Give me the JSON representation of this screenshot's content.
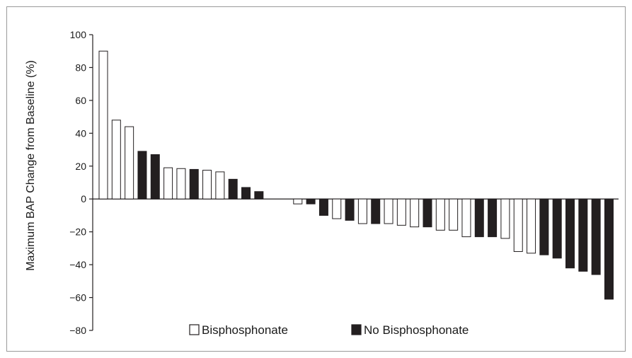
{
  "chart_data": {
    "type": "bar",
    "title": "",
    "xlabel": "",
    "ylabel": "Maximum BAP Change from Baseline (%)",
    "ylim": [
      -80,
      100
    ],
    "yticks": [
      100,
      80,
      60,
      40,
      20,
      0,
      -20,
      -40,
      -60,
      -80
    ],
    "ytick_labels": [
      "100",
      "80",
      "60",
      "40",
      "20",
      "0",
      "−20",
      "−40",
      "−60",
      "−80"
    ],
    "grid": false,
    "legend": {
      "placement": "bottom-center",
      "entries": [
        {
          "label": "Bisphosphonate",
          "style": "open"
        },
        {
          "label": "No Bisphosphonate",
          "style": "filled"
        }
      ]
    },
    "colors": {
      "filled": "#231f20",
      "open": "#ffffff",
      "outline": "#231f20"
    },
    "bars": [
      {
        "value": 90,
        "group": "Bisphosphonate"
      },
      {
        "value": 48,
        "group": "Bisphosphonate"
      },
      {
        "value": 44,
        "group": "Bisphosphonate"
      },
      {
        "value": 29,
        "group": "No Bisphosphonate"
      },
      {
        "value": 27,
        "group": "No Bisphosphonate"
      },
      {
        "value": 19,
        "group": "Bisphosphonate"
      },
      {
        "value": 18.5,
        "group": "Bisphosphonate"
      },
      {
        "value": 18,
        "group": "No Bisphosphonate"
      },
      {
        "value": 17.5,
        "group": "Bisphosphonate"
      },
      {
        "value": 16.5,
        "group": "Bisphosphonate"
      },
      {
        "value": 12,
        "group": "No Bisphosphonate"
      },
      {
        "value": 7,
        "group": "No Bisphosphonate"
      },
      {
        "value": 4.5,
        "group": "No Bisphosphonate"
      },
      {
        "value": 0,
        "group": "Bisphosphonate"
      },
      {
        "value": 0,
        "group": "Bisphosphonate"
      },
      {
        "value": -3,
        "group": "Bisphosphonate"
      },
      {
        "value": -3,
        "group": "No Bisphosphonate"
      },
      {
        "value": -10,
        "group": "No Bisphosphonate"
      },
      {
        "value": -12,
        "group": "Bisphosphonate"
      },
      {
        "value": -13,
        "group": "No Bisphosphonate"
      },
      {
        "value": -15,
        "group": "Bisphosphonate"
      },
      {
        "value": -15,
        "group": "No Bisphosphonate"
      },
      {
        "value": -15,
        "group": "Bisphosphonate"
      },
      {
        "value": -16,
        "group": "Bisphosphonate"
      },
      {
        "value": -17,
        "group": "Bisphosphonate"
      },
      {
        "value": -17,
        "group": "No Bisphosphonate"
      },
      {
        "value": -19,
        "group": "Bisphosphonate"
      },
      {
        "value": -19,
        "group": "Bisphosphonate"
      },
      {
        "value": -23,
        "group": "Bisphosphonate"
      },
      {
        "value": -23,
        "group": "No Bisphosphonate"
      },
      {
        "value": -23,
        "group": "No Bisphosphonate"
      },
      {
        "value": -24,
        "group": "Bisphosphonate"
      },
      {
        "value": -32,
        "group": "Bisphosphonate"
      },
      {
        "value": -33,
        "group": "Bisphosphonate"
      },
      {
        "value": -34,
        "group": "No Bisphosphonate"
      },
      {
        "value": -36,
        "group": "No Bisphosphonate"
      },
      {
        "value": -42,
        "group": "No Bisphosphonate"
      },
      {
        "value": -44,
        "group": "No Bisphosphonate"
      },
      {
        "value": -46,
        "group": "No Bisphosphonate"
      },
      {
        "value": -61,
        "group": "No Bisphosphonate"
      }
    ]
  }
}
